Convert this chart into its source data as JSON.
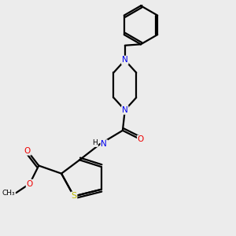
{
  "background_color": "#ececec",
  "line_color": "#000000",
  "bond_width": 1.6,
  "atom_colors": {
    "N": "#0000ee",
    "O": "#ee0000",
    "S": "#bbbb00",
    "C": "#000000",
    "H": "#000000"
  },
  "font_size": 7.0,
  "fig_size": [
    3.0,
    3.0
  ],
  "dpi": 100
}
